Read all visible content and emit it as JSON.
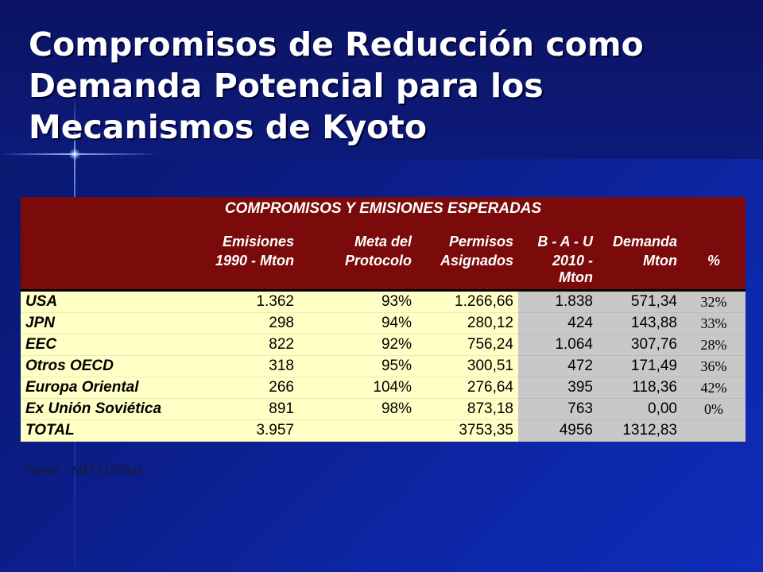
{
  "title_lines": [
    "Compromisos de Reducción como",
    "Demanda Potencial para los",
    "Mecanismos de Kyoto"
  ],
  "table": {
    "caption": "COMPROMISOS Y EMISIONES ESPERADAS",
    "headers_line1": [
      "",
      "Emisiones",
      "Meta del",
      "Permisos",
      "B - A - U",
      "Demanda",
      ""
    ],
    "headers_line2": [
      "",
      "1990 - Mton",
      "Protocolo",
      "Asignados",
      "2010 - Mton",
      "Mton",
      "%"
    ],
    "rows": [
      {
        "name": "USA",
        "emisiones": "1.362",
        "meta": "93%",
        "permisos": "1.266,66",
        "bau": "1.838",
        "demanda": "571,34",
        "pct": "32%"
      },
      {
        "name": "JPN",
        "emisiones": "298",
        "meta": "94%",
        "permisos": "280,12",
        "bau": "424",
        "demanda": "143,88",
        "pct": "33%"
      },
      {
        "name": "EEC",
        "emisiones": "822",
        "meta": "92%",
        "permisos": "756,24",
        "bau": "1.064",
        "demanda": "307,76",
        "pct": "28%"
      },
      {
        "name": "Otros OECD",
        "emisiones": "318",
        "meta": "95%",
        "permisos": "300,51",
        "bau": "472",
        "demanda": "171,49",
        "pct": "36%"
      },
      {
        "name": "Europa Oriental",
        "emisiones": "266",
        "meta": "104%",
        "permisos": "276,64",
        "bau": "395",
        "demanda": "118,36",
        "pct": "42%"
      },
      {
        "name": "Ex Unión Soviética",
        "emisiones": "891",
        "meta": "98%",
        "permisos": "873,18",
        "bau": "763",
        "demanda": "0,00",
        "pct": "0%"
      },
      {
        "name": "TOTAL",
        "emisiones": "3.957",
        "meta": "",
        "permisos": "3753,35",
        "bau": "4956",
        "demanda": "1312,83",
        "pct": ""
      }
    ]
  },
  "source": "Fuente : MIT (1998a)",
  "colors": {
    "header_bg": "#7b0a0a",
    "cell_yellow": "#ffffc6",
    "cell_gray": "#c8c8c8",
    "background": "#0b1d86"
  }
}
